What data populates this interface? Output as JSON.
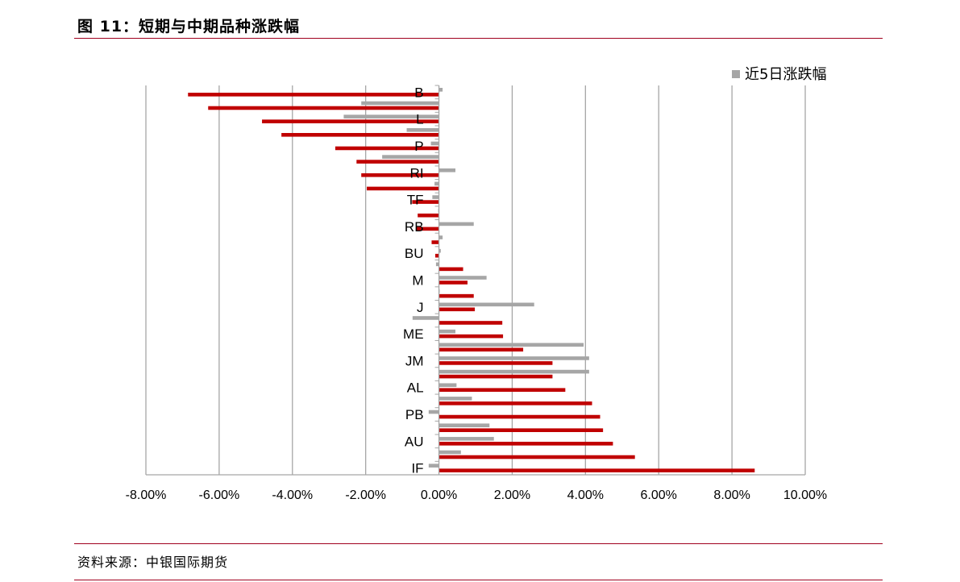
{
  "header": {
    "title": "图 11：短期与中期品种涨跌幅"
  },
  "footer": {
    "source": "资料来源：中银国际期货"
  },
  "colors": {
    "series_5d": "#a6a6a6",
    "series_1d": "#c00000",
    "rule": "#a0001e",
    "grid": "#a6a6a6"
  },
  "chart_data": {
    "type": "bar",
    "orientation": "horizontal",
    "title": "",
    "xlabel": "",
    "ylabel": "",
    "xlim": [
      -0.08,
      0.1
    ],
    "x_ticks": [
      -0.08,
      -0.06,
      -0.04,
      -0.02,
      0,
      0.02,
      0.04,
      0.06,
      0.08,
      0.1
    ],
    "x_tick_labels": [
      "-8.00%",
      "-6.00%",
      "-4.00%",
      "-2.00%",
      "0.00%",
      "2.00%",
      "4.00%",
      "6.00%",
      "8.00%",
      "10.00%"
    ],
    "grid": "vertical",
    "legend_position": "top-right",
    "categories": [
      "B",
      "",
      "L",
      "",
      "P",
      "",
      "RI",
      "",
      "TF",
      "",
      "RB",
      "",
      "BU",
      "",
      "M",
      "",
      "J",
      "",
      "ME",
      "",
      "JM",
      "",
      "AL",
      "",
      "PB",
      "",
      "AU",
      "",
      "IF"
    ],
    "series": [
      {
        "name": "近5日涨跌幅",
        "color": "#a6a6a6",
        "values": [
          0.001,
          -0.0212,
          -0.026,
          -0.0088,
          -0.0022,
          -0.0155,
          0.0045,
          -0.0012,
          -0.0018,
          -0.0002,
          0.0095,
          0.001,
          0.0005,
          -0.0008,
          0.013,
          0.0002,
          0.026,
          -0.0072,
          0.0045,
          0.0395,
          0.041,
          0.041,
          0.0048,
          0.009,
          -0.0028,
          0.0138,
          0.015,
          0.006,
          -0.0028
        ]
      },
      {
        "name": "",
        "color": "#c00000",
        "values": [
          -0.0685,
          -0.063,
          -0.0483,
          -0.043,
          -0.0283,
          -0.0225,
          -0.0212,
          -0.0197,
          -0.0073,
          -0.0058,
          -0.0062,
          -0.002,
          -0.001,
          0.0066,
          0.0078,
          0.0095,
          0.0098,
          0.0173,
          0.0175,
          0.023,
          0.031,
          0.031,
          0.0345,
          0.0418,
          0.044,
          0.0448,
          0.0475,
          0.0535,
          0.0862
        ]
      }
    ]
  }
}
